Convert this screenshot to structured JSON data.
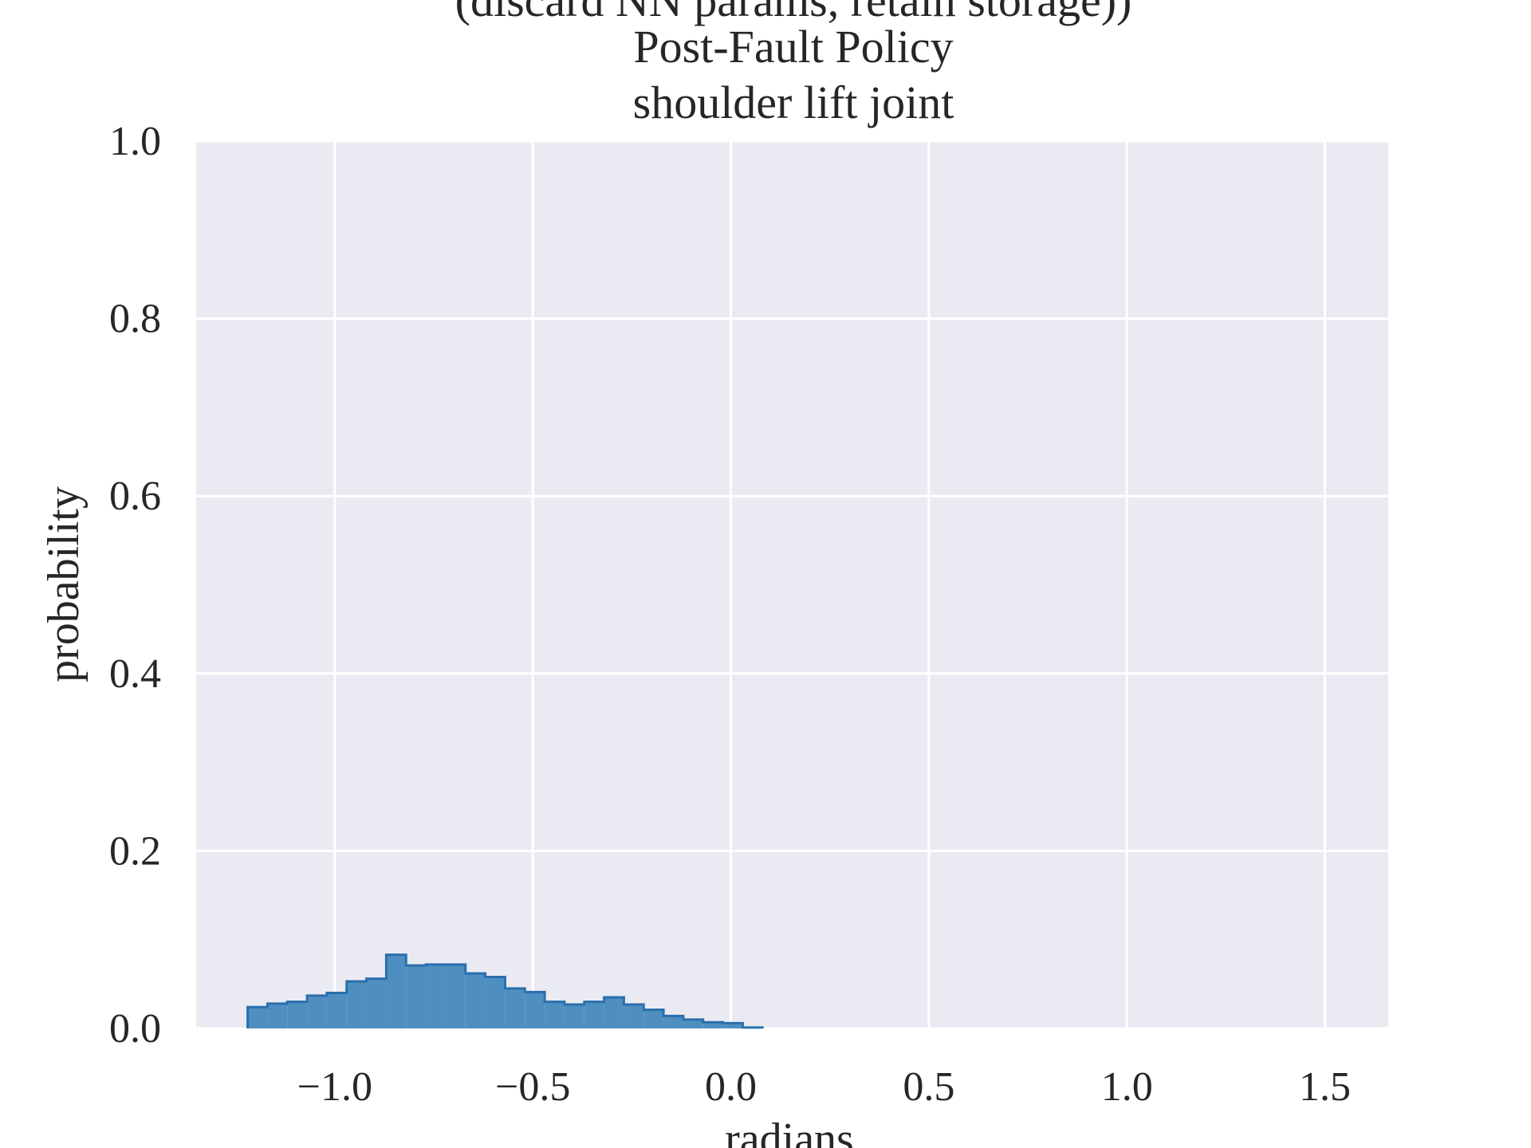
{
  "chart_data": {
    "type": "histogram",
    "title_lines": [
      "(discard NN params, retain storage))",
      "Post-Fault Policy",
      "shoulder lift joint"
    ],
    "xlabel": "radians",
    "ylabel": "probability",
    "xlim": [
      -1.35,
      1.66
    ],
    "ylim": [
      0.0,
      1.0
    ],
    "xticks": [
      -1.0,
      -0.5,
      0.0,
      0.5,
      1.0,
      1.5
    ],
    "xtick_labels": [
      "−1.0",
      "−0.5",
      "0.0",
      "0.5",
      "1.0",
      "1.5"
    ],
    "yticks": [
      0.0,
      0.2,
      0.4,
      0.6,
      0.8,
      1.0
    ],
    "ytick_labels": [
      "0.0",
      "0.2",
      "0.4",
      "0.6",
      "0.8",
      "1.0"
    ],
    "grid": true,
    "background": "#eaeaf2",
    "bar_fill": "#4f8fc0",
    "bar_edge": "#2a6fad",
    "bin_edges": [
      -1.22,
      -1.17,
      -1.12,
      -1.07,
      -1.02,
      -0.97,
      -0.92,
      -0.87,
      -0.82,
      -0.77,
      -0.72,
      -0.67,
      -0.62,
      -0.57,
      -0.52,
      -0.47,
      -0.42,
      -0.37,
      -0.32,
      -0.27,
      -0.22,
      -0.17,
      -0.12,
      -0.07,
      -0.02,
      0.03,
      0.08
    ],
    "values": [
      0.024,
      0.028,
      0.03,
      0.037,
      0.04,
      0.053,
      0.056,
      0.083,
      0.071,
      0.072,
      0.072,
      0.062,
      0.058,
      0.045,
      0.041,
      0.03,
      0.027,
      0.03,
      0.035,
      0.027,
      0.021,
      0.014,
      0.01,
      0.007,
      0.006,
      0.001
    ]
  }
}
